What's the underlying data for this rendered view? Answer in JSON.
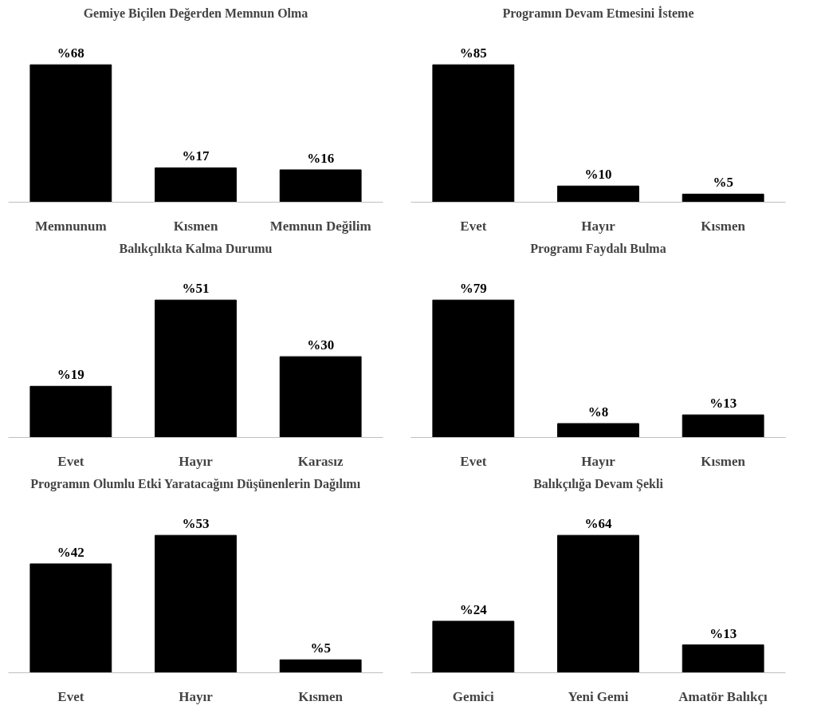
{
  "chart_data": [
    {
      "type": "bar",
      "title": "Gemiye Biçilen Değerden Memnun Olma",
      "categories": [
        "Memnunum",
        "Kısmen",
        "Memnun Değilim"
      ],
      "values": [
        68,
        17,
        16
      ],
      "value_labels": [
        "%68",
        "%17",
        "%16"
      ],
      "color": "#000000",
      "grid": false,
      "tick_labels": "x"
    },
    {
      "type": "bar",
      "title": "Programın Devam Etmesini İsteme",
      "categories": [
        "Evet",
        "Hayır",
        "Kısmen"
      ],
      "values": [
        85,
        10,
        5
      ],
      "value_labels": [
        "%85",
        "%10",
        "%5"
      ],
      "color": "#000000",
      "grid": false,
      "tick_labels": "x"
    },
    {
      "type": "bar",
      "title": "Balıkçılıkta Kalma Durumu",
      "categories": [
        "Evet",
        "Hayır",
        "Karasız"
      ],
      "values": [
        19,
        51,
        30
      ],
      "value_labels": [
        "%19",
        "%51",
        "%30"
      ],
      "color": "#000000",
      "grid": false,
      "tick_labels": "x"
    },
    {
      "type": "bar",
      "title": "Programı Faydalı Bulma",
      "categories": [
        "Evet",
        "Hayır",
        "Kısmen"
      ],
      "values": [
        79,
        8,
        13
      ],
      "value_labels": [
        "%79",
        "%8",
        "%13"
      ],
      "color": "#000000",
      "grid": false,
      "tick_labels": "x"
    },
    {
      "type": "bar",
      "title": "Programın Olumlu Etki Yaratacağını Düşünenlerin Dağılımı",
      "categories": [
        "Evet",
        "Hayır",
        "Kısmen"
      ],
      "values": [
        42,
        53,
        5
      ],
      "value_labels": [
        "%42",
        "%53",
        "%5"
      ],
      "color": "#000000",
      "grid": false,
      "tick_labels": "x"
    },
    {
      "type": "bar",
      "title": "Balıkçılığa Devam Şekli",
      "categories": [
        "Gemici",
        "Yeni Gemi",
        "Amatör Balıkçı"
      ],
      "values": [
        24,
        64,
        13
      ],
      "value_labels": [
        "%24",
        "%64",
        "%13"
      ],
      "color": "#000000",
      "grid": false,
      "tick_labels": "x"
    }
  ]
}
